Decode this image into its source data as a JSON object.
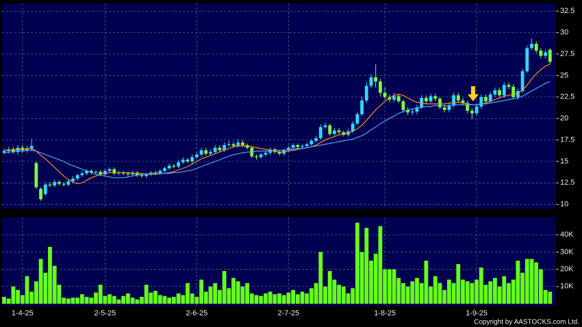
{
  "chart_data": [
    {
      "type": "candlestick",
      "up_color": "#33d6ff",
      "down_color": "#7fff3f",
      "open": [
        16.0,
        16.2,
        16.4,
        16.1,
        16.6,
        16.3,
        16.5,
        14.8,
        11.8,
        11.2,
        12.3,
        12.2,
        12.6,
        12.4,
        12.3,
        12.7,
        13.0,
        13.4,
        13.6,
        13.9,
        13.7,
        13.8,
        13.5,
        13.9,
        14.1,
        13.6,
        13.7,
        13.6,
        13.5,
        13.7,
        13.4,
        13.3,
        13.5,
        13.7,
        13.6,
        13.9,
        14.2,
        14.5,
        14.4,
        14.9,
        15.2,
        15.0,
        15.5,
        15.8,
        16.3,
        15.9,
        16.1,
        16.6,
        16.3,
        16.9,
        17.0,
        16.8,
        17.2,
        16.9,
        16.6,
        15.6,
        15.5,
        15.8,
        16.0,
        16.4,
        16.1,
        15.9,
        16.3,
        16.6,
        16.9,
        16.7,
        16.8,
        17.0,
        17.4,
        17.7,
        19.0,
        19.2,
        18.2,
        18.6,
        18.4,
        18.1,
        18.5,
        19.4,
        20.5,
        22.1,
        23.8,
        24.8,
        24.3,
        23.0,
        22.5,
        22.2,
        22.6,
        22.0,
        21.0,
        20.7,
        20.8,
        21.3,
        22.4,
        22.0,
        22.6,
        22.3,
        21.3,
        21.0,
        21.5,
        22.7,
        22.1,
        21.8,
        20.9,
        20.6,
        21.4,
        22.5,
        22.0,
        22.8,
        23.3,
        22.7,
        23.9,
        23.7,
        22.5,
        23.2,
        25.5,
        28.2,
        28.7,
        27.9,
        27.3,
        28.0
      ],
      "high": [
        16.5,
        16.7,
        16.7,
        16.9,
        16.9,
        16.8,
        17.6,
        15.0,
        12.0,
        12.5,
        12.6,
        12.9,
        12.8,
        12.6,
        12.9,
        13.3,
        13.6,
        13.9,
        14.1,
        14.1,
        14.0,
        14.0,
        14.1,
        14.3,
        14.3,
        13.9,
        13.9,
        13.8,
        13.9,
        13.9,
        13.6,
        13.7,
        13.9,
        13.9,
        14.1,
        14.4,
        14.8,
        14.7,
        15.2,
        15.5,
        15.4,
        15.8,
        16.1,
        16.6,
        16.6,
        16.4,
        16.9,
        16.9,
        17.2,
        17.4,
        17.3,
        17.6,
        17.5,
        17.1,
        16.8,
        15.8,
        16.0,
        16.2,
        16.6,
        16.6,
        16.3,
        16.5,
        16.8,
        17.1,
        17.1,
        17.0,
        17.2,
        17.6,
        18.0,
        19.3,
        19.5,
        19.4,
        18.9,
        18.9,
        18.6,
        18.8,
        19.7,
        20.8,
        22.6,
        24.3,
        25.2,
        26.3,
        24.6,
        23.6,
        22.8,
        23.0,
        22.9,
        22.2,
        21.3,
        21.1,
        21.6,
        22.7,
        22.7,
        22.9,
        22.9,
        22.5,
        21.6,
        21.8,
        23.0,
        23.0,
        22.4,
        22.1,
        21.2,
        21.7,
        22.8,
        22.8,
        23.1,
        23.6,
        23.6,
        24.2,
        24.2,
        24.0,
        23.5,
        25.8,
        28.5,
        29.3,
        29.0,
        28.2,
        28.0,
        28.2
      ],
      "low": [
        15.8,
        15.9,
        15.9,
        15.8,
        16.0,
        16.0,
        16.2,
        11.8,
        10.4,
        11.0,
        12.0,
        12.0,
        12.2,
        12.1,
        12.1,
        12.5,
        12.8,
        13.2,
        13.4,
        13.5,
        13.5,
        13.3,
        13.3,
        13.7,
        13.4,
        13.4,
        13.4,
        13.3,
        13.3,
        13.2,
        13.1,
        13.1,
        13.3,
        13.4,
        13.4,
        13.7,
        14.0,
        14.2,
        14.2,
        14.7,
        14.8,
        14.8,
        15.3,
        15.6,
        15.7,
        15.7,
        15.9,
        16.1,
        16.1,
        16.7,
        16.6,
        16.6,
        16.7,
        16.4,
        15.4,
        15.2,
        15.3,
        15.6,
        15.8,
        15.9,
        15.7,
        15.7,
        16.1,
        16.4,
        16.5,
        16.5,
        16.6,
        16.8,
        17.2,
        17.5,
        18.8,
        18.0,
        18.0,
        18.2,
        17.9,
        17.9,
        18.3,
        19.2,
        20.3,
        21.8,
        23.5,
        23.6,
        22.6,
        22.2,
        21.9,
        21.9,
        21.8,
        20.7,
        20.4,
        20.4,
        20.5,
        21.1,
        21.7,
        21.8,
        22.0,
        21.1,
        20.7,
        20.7,
        21.3,
        21.8,
        21.5,
        20.6,
        19.9,
        20.3,
        21.1,
        21.7,
        21.8,
        22.5,
        22.4,
        22.4,
        23.4,
        22.2,
        22.2,
        23.0,
        25.3,
        28.0,
        27.6,
        27.0,
        27.0,
        26.3
      ],
      "close": [
        16.2,
        16.4,
        16.1,
        16.6,
        16.3,
        16.5,
        16.8,
        12.0,
        10.6,
        12.3,
        12.2,
        12.6,
        12.4,
        12.3,
        12.7,
        13.0,
        13.4,
        13.6,
        13.9,
        13.7,
        13.8,
        13.5,
        13.9,
        14.1,
        13.6,
        13.7,
        13.6,
        13.5,
        13.7,
        13.4,
        13.3,
        13.5,
        13.7,
        13.6,
        13.9,
        14.2,
        14.5,
        14.4,
        14.9,
        15.2,
        15.0,
        15.5,
        15.8,
        16.3,
        15.9,
        16.1,
        16.6,
        16.3,
        16.9,
        17.0,
        16.8,
        17.2,
        16.9,
        16.6,
        15.6,
        15.5,
        15.8,
        16.0,
        16.4,
        16.1,
        15.9,
        16.3,
        16.6,
        16.9,
        16.7,
        16.8,
        17.0,
        17.4,
        17.7,
        19.0,
        19.2,
        18.2,
        18.6,
        18.4,
        18.1,
        18.5,
        19.4,
        20.5,
        22.1,
        23.8,
        24.8,
        24.3,
        23.0,
        22.5,
        22.2,
        22.6,
        22.0,
        21.0,
        20.7,
        20.8,
        21.3,
        22.4,
        22.0,
        22.6,
        22.3,
        21.3,
        21.0,
        21.5,
        22.7,
        22.1,
        21.8,
        20.9,
        20.6,
        21.4,
        22.5,
        22.0,
        22.8,
        23.3,
        22.7,
        23.9,
        23.7,
        22.5,
        23.2,
        25.5,
        28.2,
        28.7,
        27.9,
        27.3,
        27.7,
        26.6
      ],
      "series": [
        {
          "color": "#ff8c1a",
          "values": [
            16.3,
            16.3,
            16.4,
            16.4,
            16.4,
            16.5,
            16.5,
            16.2,
            15.7,
            15.3,
            14.8,
            14.3,
            13.8,
            13.3,
            12.9,
            12.6,
            12.4,
            12.5,
            12.8,
            13.1,
            13.3,
            13.5,
            13.6,
            13.7,
            13.7,
            13.7,
            13.7,
            13.7,
            13.6,
            13.6,
            13.6,
            13.5,
            13.5,
            13.5,
            13.6,
            13.6,
            13.7,
            13.8,
            14.0,
            14.2,
            14.4,
            14.7,
            15.0,
            15.3,
            15.5,
            15.7,
            15.9,
            16.1,
            16.3,
            16.5,
            16.7,
            16.8,
            16.8,
            16.8,
            16.7,
            16.6,
            16.5,
            16.4,
            16.3,
            16.2,
            16.1,
            16.1,
            16.2,
            16.3,
            16.4,
            16.5,
            16.6,
            16.7,
            16.9,
            17.2,
            17.5,
            17.7,
            17.9,
            18.1,
            18.2,
            18.3,
            18.5,
            18.8,
            19.2,
            19.8,
            20.4,
            21.0,
            21.5,
            22.0,
            22.4,
            22.7,
            22.8,
            22.7,
            22.4,
            22.1,
            21.9,
            21.8,
            21.7,
            21.7,
            21.7,
            21.7,
            21.7,
            21.8,
            21.8,
            21.9,
            21.8,
            21.7,
            21.6,
            21.6,
            21.7,
            21.8,
            22.0,
            22.2,
            22.4,
            22.6,
            22.7,
            22.8,
            22.9,
            23.3,
            23.9,
            24.6,
            25.2,
            25.7,
            26.1,
            26.3
          ]
        },
        {
          "color": "#4da6ff",
          "values": [
            16.0,
            16.1,
            16.1,
            16.2,
            16.2,
            16.3,
            16.3,
            16.2,
            16.0,
            15.8,
            15.6,
            15.4,
            15.2,
            15.0,
            14.7,
            14.5,
            14.3,
            14.1,
            13.9,
            13.7,
            13.5,
            13.4,
            13.3,
            13.2,
            13.1,
            13.1,
            13.1,
            13.2,
            13.3,
            13.4,
            13.5,
            13.5,
            13.6,
            13.6,
            13.6,
            13.6,
            13.6,
            13.7,
            13.7,
            13.8,
            13.9,
            14.0,
            14.2,
            14.4,
            14.6,
            14.8,
            15.0,
            15.2,
            15.4,
            15.6,
            15.8,
            15.9,
            16.0,
            16.1,
            16.1,
            16.2,
            16.2,
            16.2,
            16.2,
            16.3,
            16.3,
            16.3,
            16.4,
            16.4,
            16.5,
            16.5,
            16.6,
            16.7,
            16.8,
            16.9,
            17.0,
            17.1,
            17.2,
            17.3,
            17.4,
            17.5,
            17.6,
            17.8,
            18.0,
            18.3,
            18.7,
            19.0,
            19.4,
            19.7,
            20.0,
            20.3,
            20.6,
            20.8,
            21.0,
            21.1,
            21.2,
            21.3,
            21.4,
            21.4,
            21.5,
            21.5,
            21.5,
            21.5,
            21.6,
            21.6,
            21.6,
            21.6,
            21.6,
            21.6,
            21.7,
            21.7,
            21.8,
            21.9,
            22.0,
            22.1,
            22.2,
            22.3,
            22.4,
            22.6,
            22.9,
            23.2,
            23.5,
            23.8,
            24.1,
            24.3
          ]
        }
      ],
      "ylim": [
        9.5,
        33.4
      ],
      "yticks": [
        10,
        12.5,
        15,
        17.5,
        20,
        22.5,
        25,
        27.5,
        30,
        32.5
      ],
      "grid": true
    },
    {
      "type": "bar",
      "color": "#66ff1a",
      "categories": [
        null,
        null,
        null,
        null,
        "1-4-25",
        null,
        null,
        null,
        null,
        null,
        null,
        null,
        null,
        null,
        null,
        null,
        null,
        null,
        null,
        null,
        null,
        null,
        "2-5-25",
        null,
        null,
        null,
        null,
        null,
        null,
        null,
        null,
        null,
        null,
        null,
        null,
        null,
        null,
        null,
        null,
        null,
        null,
        null,
        "2-6-25",
        null,
        null,
        null,
        null,
        null,
        null,
        null,
        null,
        null,
        null,
        null,
        null,
        null,
        null,
        null,
        null,
        null,
        null,
        null,
        "2-7-25",
        null,
        null,
        null,
        null,
        null,
        null,
        null,
        null,
        null,
        null,
        null,
        null,
        null,
        null,
        null,
        null,
        null,
        null,
        null,
        null,
        "1-8-25",
        null,
        null,
        null,
        null,
        null,
        null,
        null,
        null,
        null,
        null,
        null,
        null,
        null,
        null,
        null,
        null,
        null,
        null,
        null,
        "1-9-25",
        null,
        null,
        null,
        null,
        null,
        null,
        null,
        null,
        null,
        null,
        null,
        null,
        null,
        null,
        null,
        null
      ],
      "values": [
        4000,
        3000,
        10000,
        8000,
        5000,
        16000,
        7000,
        13000,
        26000,
        18000,
        33000,
        22000,
        11000,
        3500,
        3000,
        3500,
        3500,
        5500,
        4000,
        3500,
        6500,
        11000,
        4500,
        5500,
        4500,
        2500,
        4500,
        6000,
        3500,
        2500,
        4000,
        11000,
        6500,
        7500,
        5000,
        4500,
        3500,
        4000,
        6000,
        5000,
        12000,
        6000,
        4000,
        14000,
        7000,
        10000,
        12000,
        8000,
        19000,
        9000,
        15000,
        13000,
        10000,
        12000,
        6000,
        5000,
        4500,
        6000,
        7000,
        5500,
        6000,
        5000,
        6500,
        8000,
        5500,
        7000,
        6000,
        9000,
        12000,
        30000,
        10000,
        19000,
        14000,
        11000,
        10000,
        6000,
        9000,
        47000,
        30000,
        44000,
        25000,
        29000,
        45000,
        20000,
        20000,
        20000,
        15000,
        12000,
        10000,
        13000,
        15000,
        12000,
        25000,
        10000,
        16000,
        12000,
        8000,
        14000,
        12000,
        23000,
        14000,
        13000,
        12000,
        14000,
        21000,
        11000,
        13000,
        15000,
        10000,
        16000,
        12000,
        14000,
        25000,
        18000,
        26000,
        26000,
        24000,
        20000,
        8000,
        7000
      ],
      "ylim": [
        0,
        50000
      ],
      "yticks": [
        {
          "value": 10000,
          "label": "10K"
        },
        {
          "value": 20000,
          "label": "20K"
        },
        {
          "value": 30000,
          "label": "30K"
        },
        {
          "value": 40000,
          "label": "40K"
        }
      ],
      "grid": true
    }
  ],
  "copyright": "Copyright by AASTOCKS.com Ltd."
}
